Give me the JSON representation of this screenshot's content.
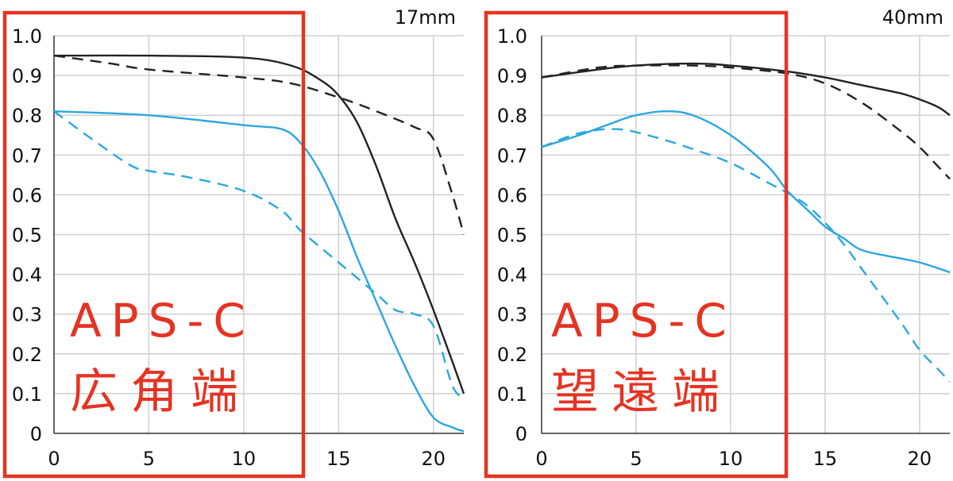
{
  "chart_data": [
    {
      "type": "line",
      "title": "17mm",
      "xlim": [
        0,
        21.6
      ],
      "ylim": [
        0,
        1.0
      ],
      "x_ticks": [
        "0",
        "5",
        "10",
        "15",
        "20"
      ],
      "y_ticks": [
        "0",
        "0.1",
        "0.2",
        "0.3",
        "0.4",
        "0.5",
        "0.6",
        "0.7",
        "0.8",
        "0.9",
        "1.0"
      ],
      "grid": true,
      "series": [
        {
          "color": "#222222",
          "style": "solid",
          "points": [
            [
              0,
              0.95
            ],
            [
              5,
              0.95
            ],
            [
              10,
              0.945
            ],
            [
              12.5,
              0.925
            ],
            [
              14,
              0.89
            ],
            [
              15,
              0.85
            ],
            [
              16,
              0.78
            ],
            [
              17,
              0.67
            ],
            [
              18,
              0.54
            ],
            [
              19,
              0.43
            ],
            [
              20,
              0.31
            ],
            [
              21,
              0.18
            ],
            [
              21.6,
              0.1
            ]
          ]
        },
        {
          "color": "#222222",
          "style": "dashed",
          "points": [
            [
              0,
              0.95
            ],
            [
              3,
              0.93
            ],
            [
              5,
              0.915
            ],
            [
              10,
              0.895
            ],
            [
              12.5,
              0.88
            ],
            [
              15,
              0.845
            ],
            [
              17,
              0.81
            ],
            [
              19,
              0.77
            ],
            [
              20,
              0.74
            ],
            [
              21,
              0.6
            ],
            [
              21.6,
              0.5
            ]
          ]
        },
        {
          "color": "#2aa7e0",
          "style": "solid",
          "points": [
            [
              0,
              0.81
            ],
            [
              5,
              0.8
            ],
            [
              10,
              0.775
            ],
            [
              12,
              0.765
            ],
            [
              13,
              0.73
            ],
            [
              14,
              0.66
            ],
            [
              15,
              0.56
            ],
            [
              16,
              0.44
            ],
            [
              17,
              0.33
            ],
            [
              18,
              0.22
            ],
            [
              19,
              0.12
            ],
            [
              20,
              0.04
            ],
            [
              21,
              0.015
            ],
            [
              21.6,
              0.005
            ]
          ]
        },
        {
          "color": "#2aa7e0",
          "style": "dashed",
          "points": [
            [
              0,
              0.81
            ],
            [
              2,
              0.74
            ],
            [
              4,
              0.675
            ],
            [
              5,
              0.66
            ],
            [
              7,
              0.645
            ],
            [
              10,
              0.61
            ],
            [
              12,
              0.56
            ],
            [
              13,
              0.51
            ],
            [
              15,
              0.43
            ],
            [
              17,
              0.35
            ],
            [
              18,
              0.31
            ],
            [
              19,
              0.3
            ],
            [
              20,
              0.27
            ],
            [
              21,
              0.12
            ],
            [
              21.6,
              0.09
            ]
          ]
        }
      ],
      "overlay": {
        "lines": [
          "APS-C",
          "広角端"
        ],
        "max_x": 13
      }
    },
    {
      "type": "line",
      "title": "40mm",
      "xlim": [
        0,
        21.6
      ],
      "ylim": [
        0,
        1.0
      ],
      "x_ticks": [
        "0",
        "5",
        "10",
        "15",
        "20"
      ],
      "y_ticks": [
        "0",
        "0.1",
        "0.2",
        "0.3",
        "0.4",
        "0.5",
        "0.6",
        "0.7",
        "0.8",
        "0.9",
        "1.0"
      ],
      "grid": true,
      "series": [
        {
          "color": "#222222",
          "style": "solid",
          "points": [
            [
              0,
              0.895
            ],
            [
              3,
              0.915
            ],
            [
              5,
              0.925
            ],
            [
              8,
              0.93
            ],
            [
              10,
              0.925
            ],
            [
              13,
              0.91
            ],
            [
              15,
              0.895
            ],
            [
              17,
              0.875
            ],
            [
              19,
              0.855
            ],
            [
              20,
              0.84
            ],
            [
              21,
              0.82
            ],
            [
              21.6,
              0.8
            ]
          ]
        },
        {
          "color": "#222222",
          "style": "dashed",
          "points": [
            [
              0,
              0.895
            ],
            [
              3,
              0.92
            ],
            [
              5,
              0.925
            ],
            [
              8,
              0.925
            ],
            [
              10,
              0.92
            ],
            [
              13,
              0.905
            ],
            [
              15,
              0.88
            ],
            [
              17,
              0.83
            ],
            [
              19,
              0.76
            ],
            [
              20,
              0.72
            ],
            [
              21,
              0.67
            ],
            [
              21.6,
              0.64
            ]
          ]
        },
        {
          "color": "#2aa7e0",
          "style": "solid",
          "points": [
            [
              0,
              0.72
            ],
            [
              2,
              0.75
            ],
            [
              4,
              0.785
            ],
            [
              5,
              0.8
            ],
            [
              6.5,
              0.81
            ],
            [
              8,
              0.8
            ],
            [
              10,
              0.75
            ],
            [
              12,
              0.67
            ],
            [
              13,
              0.61
            ],
            [
              14,
              0.565
            ],
            [
              15,
              0.52
            ],
            [
              16,
              0.49
            ],
            [
              17,
              0.46
            ],
            [
              19,
              0.44
            ],
            [
              20,
              0.43
            ],
            [
              21,
              0.415
            ],
            [
              21.6,
              0.405
            ]
          ]
        },
        {
          "color": "#2aa7e0",
          "style": "dashed",
          "points": [
            [
              0,
              0.72
            ],
            [
              2,
              0.755
            ],
            [
              4,
              0.765
            ],
            [
              6,
              0.745
            ],
            [
              8,
              0.715
            ],
            [
              10,
              0.68
            ],
            [
              12,
              0.63
            ],
            [
              13,
              0.605
            ],
            [
              14,
              0.575
            ],
            [
              15,
              0.53
            ],
            [
              16,
              0.475
            ],
            [
              17,
              0.41
            ],
            [
              19,
              0.28
            ],
            [
              20,
              0.21
            ],
            [
              21,
              0.16
            ],
            [
              21.6,
              0.13
            ]
          ]
        }
      ],
      "overlay": {
        "lines": [
          "APS-C",
          "望遠端"
        ],
        "max_x": 13
      }
    }
  ]
}
